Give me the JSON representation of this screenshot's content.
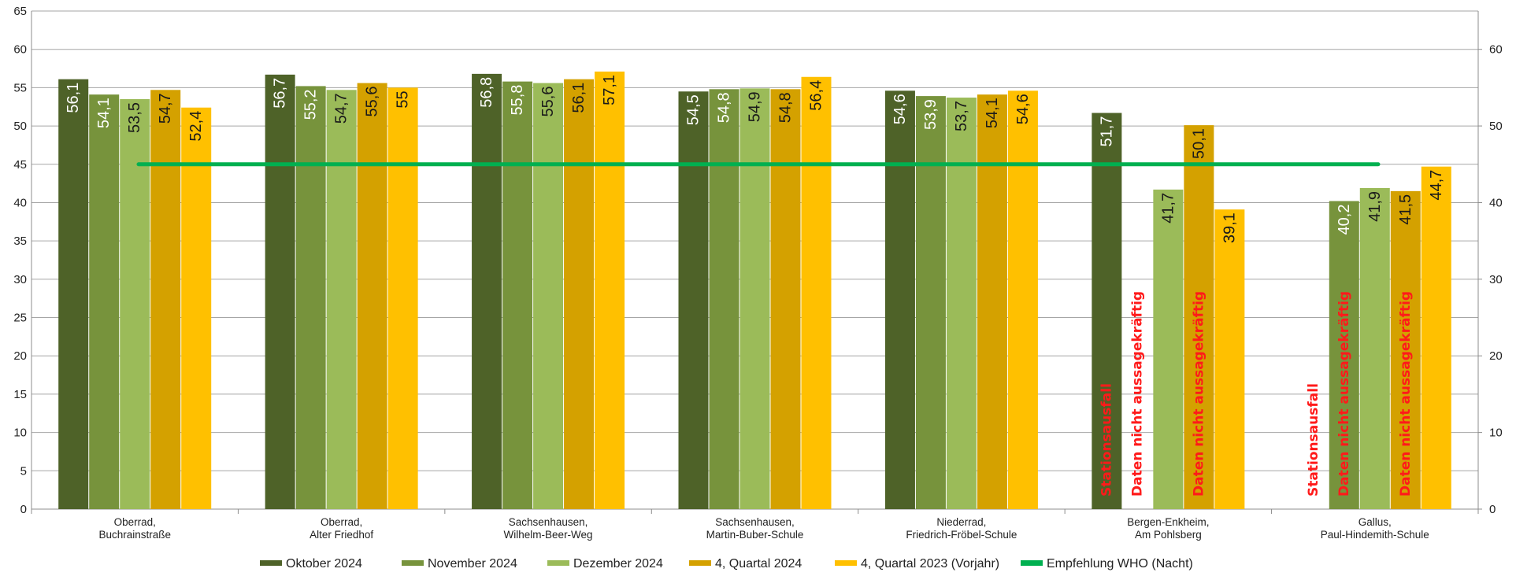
{
  "chart_data": {
    "type": "bar",
    "title": "",
    "xlabel": "",
    "ylabel": "",
    "ylim": [
      0,
      65
    ],
    "y_ticks_left": [
      0,
      5,
      10,
      15,
      20,
      25,
      30,
      35,
      40,
      45,
      50,
      55,
      60,
      65
    ],
    "y_ticks_right": [
      0,
      10,
      20,
      30,
      40,
      50,
      60
    ],
    "grid": true,
    "legend_position": "bottom",
    "categories": [
      [
        "Oberrad,",
        "Buchrainstraße"
      ],
      [
        "Oberrad,",
        "Alter Friedhof"
      ],
      [
        "Sachsenhausen,",
        "Wilhelm-Beer-Weg"
      ],
      [
        "Sachsenhausen,",
        "Martin-Buber-Schule"
      ],
      [
        "Niederrad,",
        "Friedrich-Fröbel-Schule"
      ],
      [
        "Bergen-Enkheim,",
        "Am Pohlsberg"
      ],
      [
        "Gallus,",
        "Paul-Hindemith-Schule"
      ]
    ],
    "series": [
      {
        "name": "Oktober 2024",
        "color": "#4e6228",
        "values": [
          56.1,
          56.7,
          56.8,
          54.5,
          54.6,
          51.7,
          null
        ],
        "labels": [
          "56,1",
          "56,7",
          "56,8",
          "54,5",
          "54,6",
          "51,7",
          null
        ]
      },
      {
        "name": "November 2024",
        "color": "#77933c",
        "values": [
          54.1,
          55.2,
          55.8,
          54.8,
          53.9,
          null,
          40.2
        ],
        "labels": [
          "54,1",
          "55,2",
          "55,8",
          "54,8",
          "53,9",
          null,
          "40,2"
        ]
      },
      {
        "name": "Dezember 2024",
        "color": "#9bbb59",
        "values": [
          53.5,
          54.7,
          55.6,
          54.9,
          53.7,
          41.7,
          41.9
        ],
        "labels": [
          "53,5",
          "54,7",
          "55,6",
          "54,9",
          "53,7",
          "41,7",
          "41,9"
        ]
      },
      {
        "name": "4, Quartal 2024",
        "color": "#d4a100",
        "values": [
          54.7,
          55.6,
          56.1,
          54.8,
          54.1,
          50.1,
          41.5
        ],
        "labels": [
          "54,7",
          "55,6",
          "56,1",
          "54,8",
          "54,1",
          "50,1",
          "41,5"
        ]
      },
      {
        "name": "4, Quartal 2023 (Vorjahr)",
        "color": "#ffc000",
        "values": [
          52.4,
          55.0,
          57.1,
          56.4,
          54.6,
          39.1,
          44.7
        ],
        "labels": [
          "52,4",
          "55",
          "57,1",
          "56,4",
          "54,6",
          "39,1",
          "44,7"
        ]
      }
    ],
    "reference_line": {
      "name": "Empfehlung WHO (Nacht)",
      "value": 45,
      "color": "#00b050"
    },
    "annotations": [
      {
        "category": 5,
        "series": 0,
        "text": "Stationsausfall"
      },
      {
        "category": 5,
        "series": 1,
        "text": "Daten nicht aussagekräftig"
      },
      {
        "category": 5,
        "series": 3,
        "text": "Daten nicht aussagekräftig"
      },
      {
        "category": 6,
        "series": 0,
        "text": "Stationsausfall"
      },
      {
        "category": 6,
        "series": 1,
        "text": "Daten nicht aussagekräftig"
      },
      {
        "category": 6,
        "series": 3,
        "text": "Daten nicht aussagekräftig"
      }
    ]
  }
}
